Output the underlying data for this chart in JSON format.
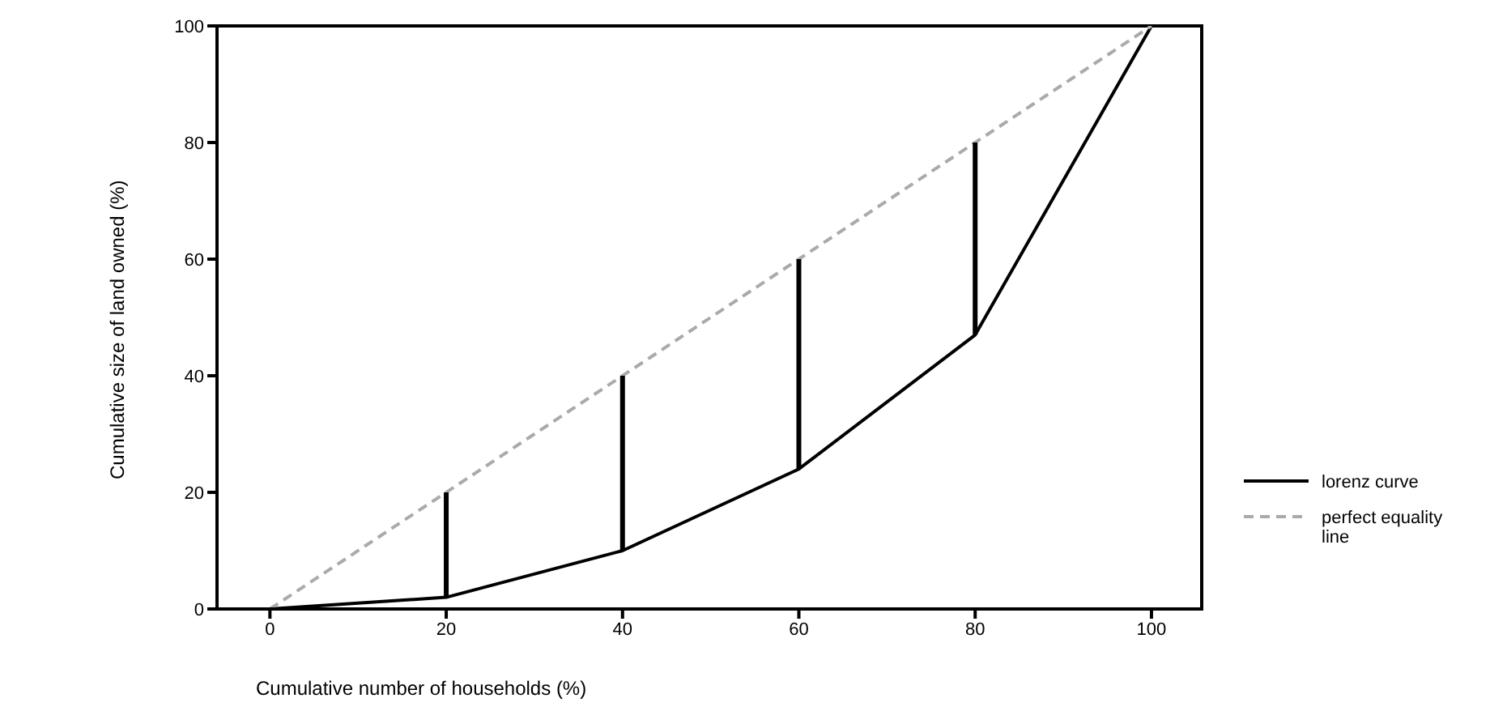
{
  "chart_data": {
    "type": "line",
    "xlabel": "Cumulative number of households (%)",
    "ylabel": "Cumulative size of land owned (%)",
    "series": [
      {
        "name": "lorenz curve",
        "color": "#000000",
        "x": [
          0,
          20,
          40,
          60,
          80,
          100
        ],
        "values": [
          0,
          2,
          10,
          24,
          47,
          100
        ]
      },
      {
        "name": "perfect equality line",
        "color": "#aaaaaa",
        "line_style": "dashed",
        "x": [
          0,
          100
        ],
        "values": [
          0,
          100
        ]
      },
      {
        "color": "#000000",
        "x": [
          20,
          20
        ],
        "values": [
          2,
          20
        ]
      },
      {
        "color": "#000000",
        "x": [
          40,
          40
        ],
        "values": [
          10,
          40
        ]
      },
      {
        "color": "#000000",
        "x": [
          60,
          60
        ],
        "values": [
          24,
          60
        ]
      },
      {
        "color": "#000000",
        "x": [
          80,
          80
        ],
        "values": [
          47,
          80
        ]
      }
    ],
    "xlim": [
      -6,
      105.7
    ],
    "xticks": [
      0,
      20,
      40,
      60,
      80,
      100
    ],
    "ylim": [
      0,
      100
    ],
    "yticks": [
      0,
      20,
      40,
      60,
      80,
      100
    ],
    "legend": "right",
    "marker": "none"
  }
}
